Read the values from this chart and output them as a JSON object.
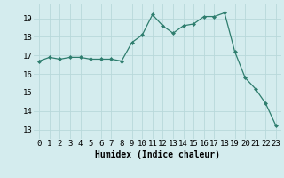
{
  "x": [
    0,
    1,
    2,
    3,
    4,
    5,
    6,
    7,
    8,
    9,
    10,
    11,
    12,
    13,
    14,
    15,
    16,
    17,
    18,
    19,
    20,
    21,
    22,
    23
  ],
  "y": [
    16.7,
    16.9,
    16.8,
    16.9,
    16.9,
    16.8,
    16.8,
    16.8,
    16.7,
    17.7,
    18.1,
    19.2,
    18.6,
    18.2,
    18.6,
    18.7,
    19.1,
    19.1,
    19.3,
    17.2,
    15.8,
    15.2,
    14.4,
    13.2
  ],
  "line_color": "#2e7d6e",
  "marker": "D",
  "marker_size": 2,
  "bg_color": "#d4ecee",
  "grid_color": "#b8d8da",
  "xlabel": "Humidex (Indice chaleur)",
  "xlabel_fontsize": 7,
  "tick_fontsize": 6.5,
  "xlim": [
    -0.5,
    23.5
  ],
  "ylim": [
    12.5,
    19.8
  ],
  "yticks": [
    13,
    14,
    15,
    16,
    17,
    18,
    19
  ],
  "xticks": [
    0,
    1,
    2,
    3,
    4,
    5,
    6,
    7,
    8,
    9,
    10,
    11,
    12,
    13,
    14,
    15,
    16,
    17,
    18,
    19,
    20,
    21,
    22,
    23
  ]
}
